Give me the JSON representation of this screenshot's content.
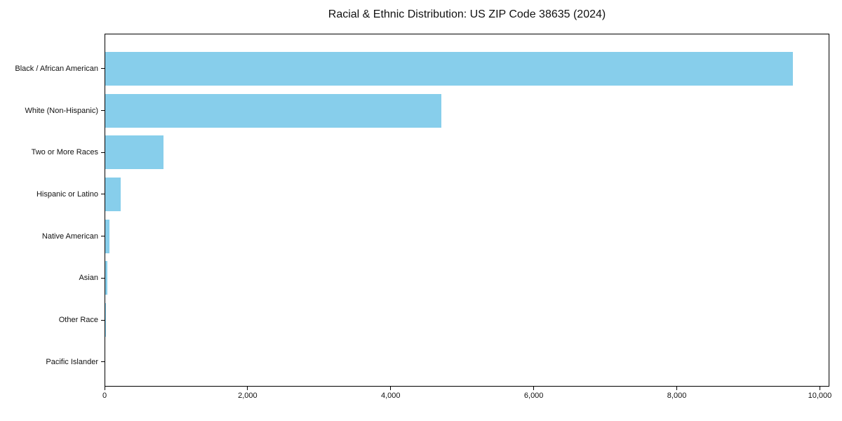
{
  "chart_data": {
    "type": "bar",
    "orientation": "horizontal",
    "title": "Racial & Ethnic Distribution: US ZIP Code 38635 (2024)",
    "categories": [
      "Black / African American",
      "White (Non-Hispanic)",
      "Two or More Races",
      "Hispanic or Latino",
      "Native American",
      "Asian",
      "Other Race",
      "Pacific Islander"
    ],
    "values": [
      9630,
      4710,
      815,
      220,
      60,
      25,
      10,
      0
    ],
    "xlabel": "",
    "ylabel": "",
    "xlim": [
      0,
      10133
    ],
    "x_ticks": [
      0,
      2000,
      4000,
      6000,
      8000,
      10000
    ],
    "x_tick_labels": [
      "0",
      "2,000",
      "4,000",
      "6,000",
      "8,000",
      "10,000"
    ],
    "bar_color": "#87CEEB",
    "axis_color": "#000000",
    "text_color": "#111111",
    "grid": false,
    "legend": "none"
  }
}
